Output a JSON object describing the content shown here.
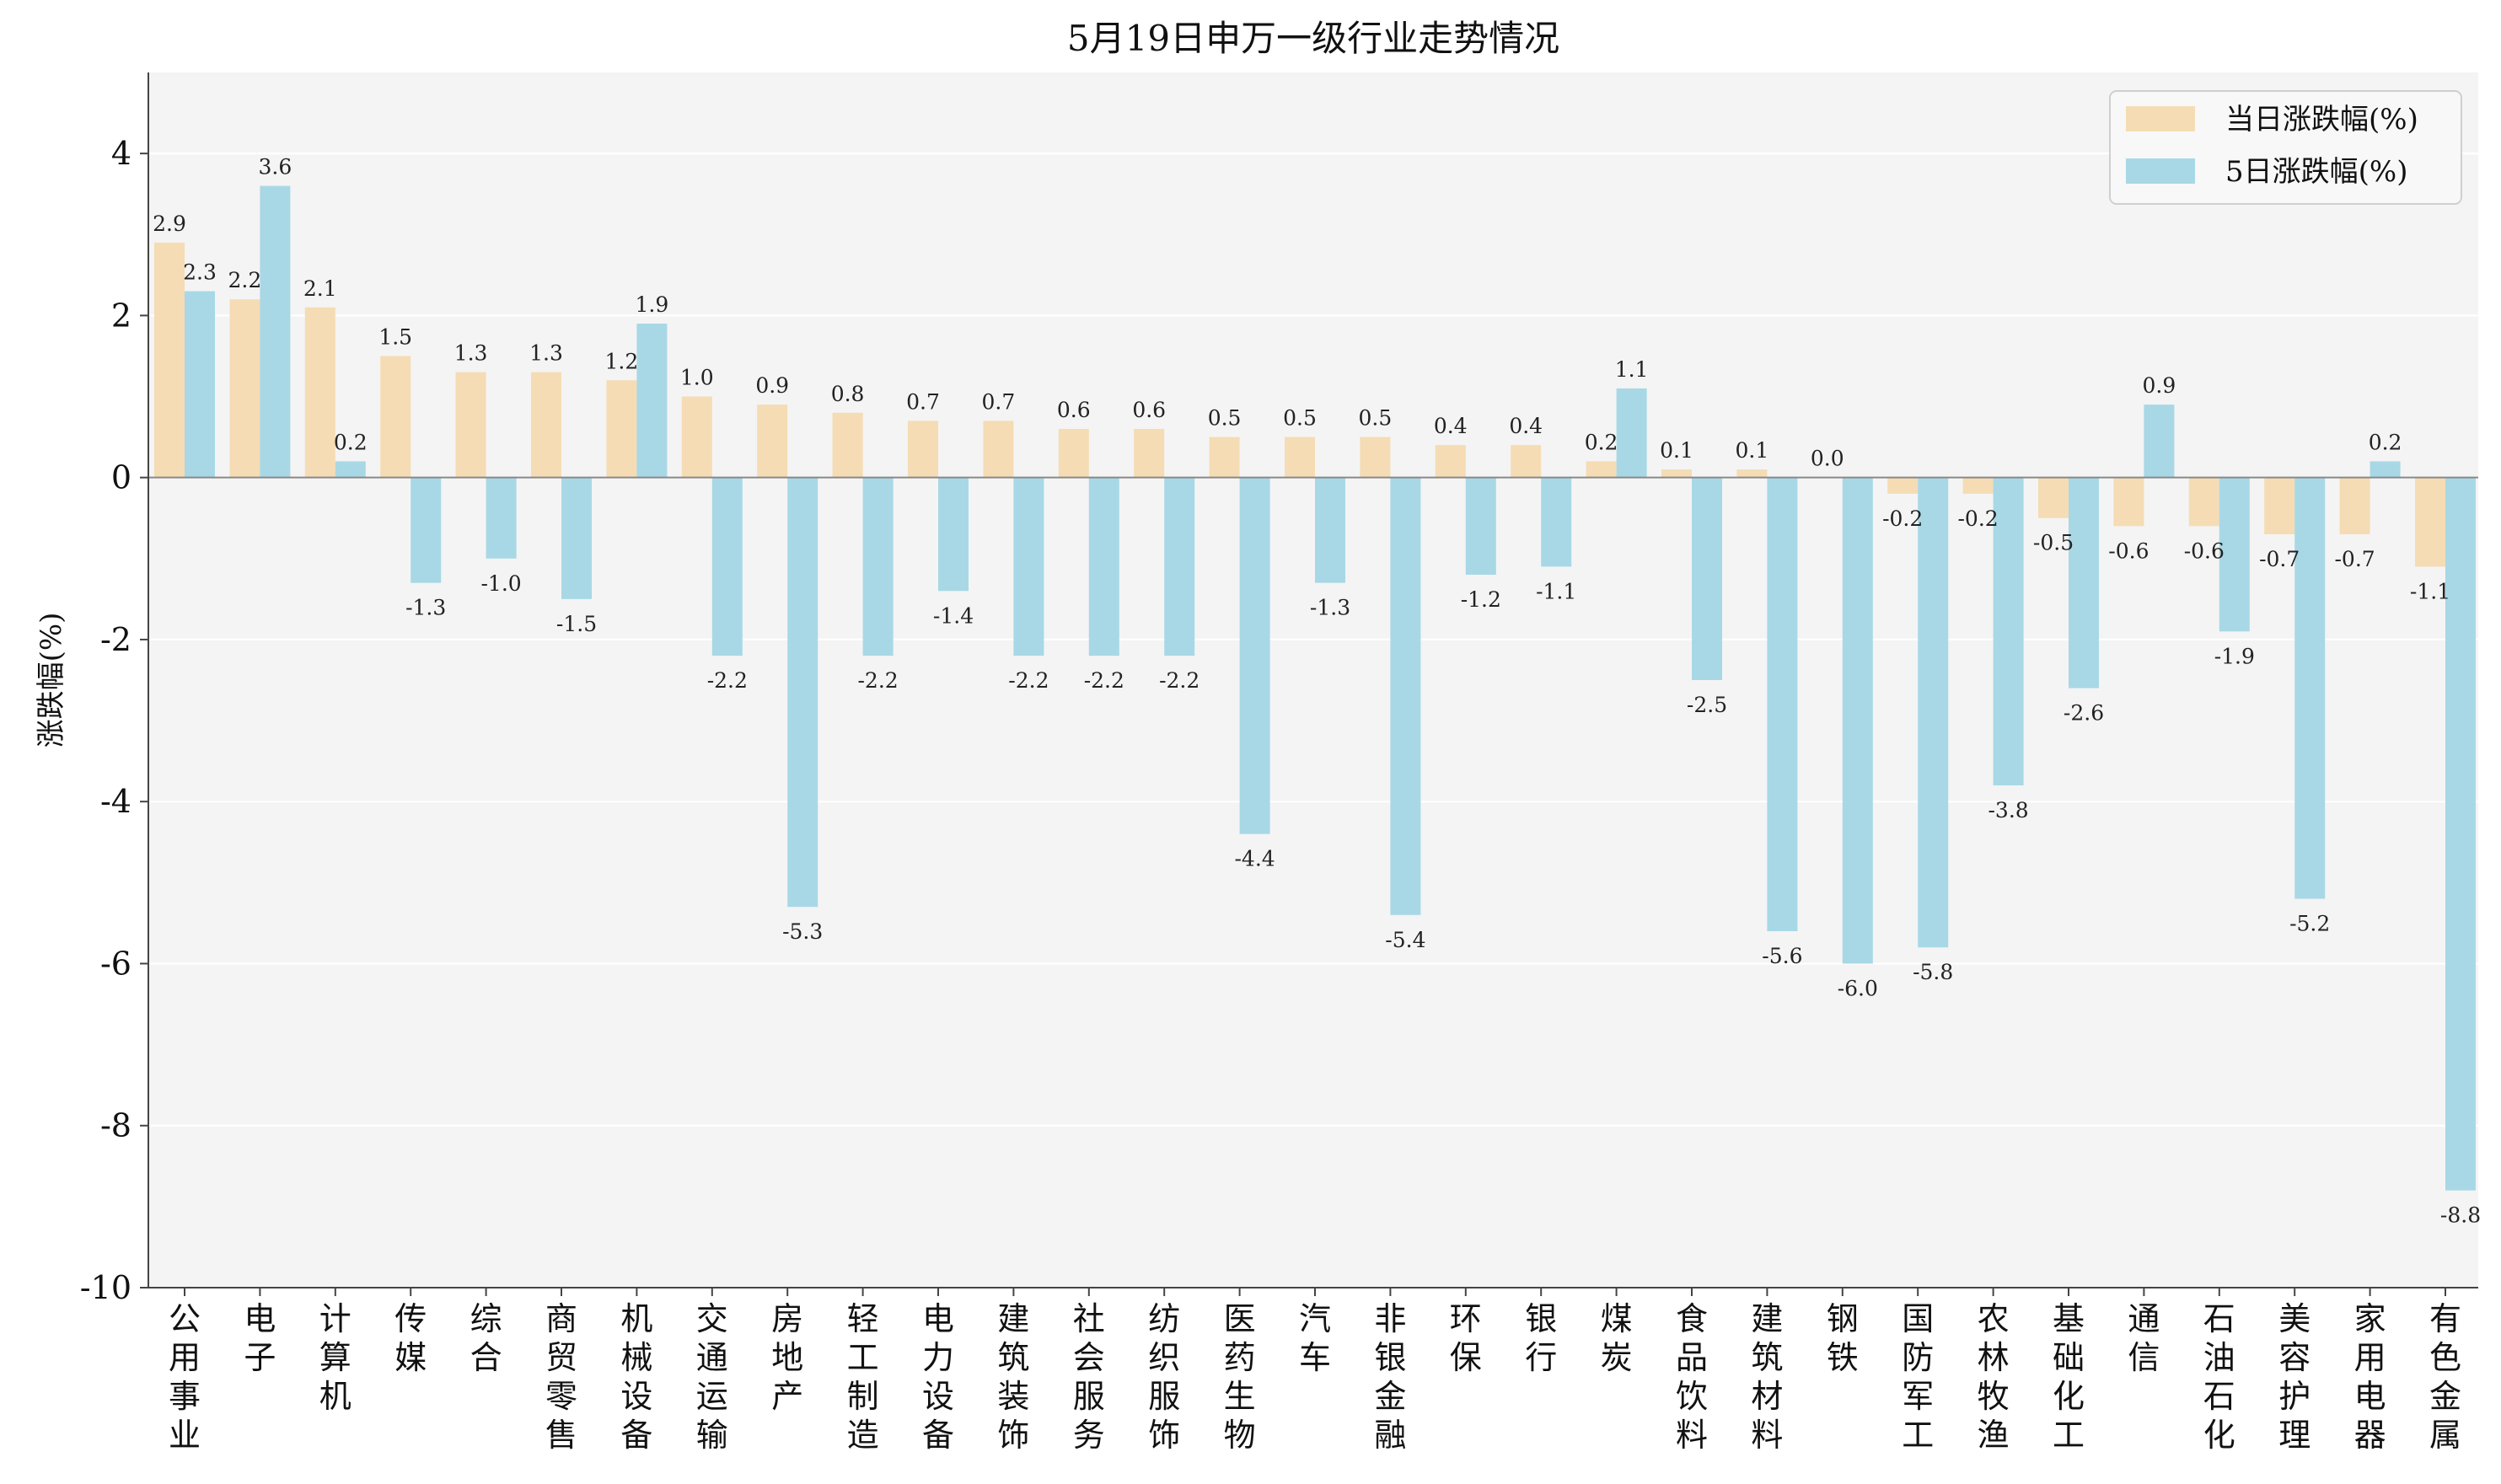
{
  "chart_data": {
    "type": "bar",
    "title": "5月19日申万一级行业走势情况",
    "xlabel": "",
    "ylabel": "涨跌幅(%)",
    "ylim": [
      -10,
      5
    ],
    "yticks": [
      4,
      2,
      0,
      -2,
      -4,
      -6,
      -8,
      -10
    ],
    "grid": true,
    "legend_position": "top-right",
    "categories": [
      "公用事业",
      "电子",
      "计算机",
      "传媒",
      "综合",
      "商贸零售",
      "机械设备",
      "交通运输",
      "房地产",
      "轻工制造",
      "电力设备",
      "建筑装饰",
      "社会服务",
      "纺织服饰",
      "医药生物",
      "汽车",
      "非银金融",
      "环保",
      "银行",
      "煤炭",
      "食品饮料",
      "建筑材料",
      "钢铁",
      "国防军工",
      "农林牧渔",
      "基础化工",
      "通信",
      "石油石化",
      "美容护理",
      "家用电器",
      "有色金属"
    ],
    "series": [
      {
        "name": "当日涨跌幅(%)",
        "color": "#f5dcb4",
        "values": [
          2.9,
          2.2,
          2.1,
          1.5,
          1.3,
          1.3,
          1.2,
          1.0,
          0.9,
          0.8,
          0.7,
          0.7,
          0.6,
          0.6,
          0.5,
          0.5,
          0.5,
          0.4,
          0.4,
          0.2,
          0.1,
          0.1,
          0.0,
          -0.2,
          -0.2,
          -0.5,
          -0.6,
          -0.6,
          -0.7,
          -0.7,
          -1.1
        ],
        "labels": [
          "2.9",
          "2.2",
          "2.1",
          "1.5",
          "1.3",
          "1.3",
          "1.2",
          "1.0",
          "0.9",
          "0.8",
          "0.7",
          "0.7",
          "0.6",
          "0.6",
          "0.5",
          "0.5",
          "0.5",
          "0.4",
          "0.4",
          "0.2",
          "0.1",
          "0.1",
          "0.0",
          "-0.2",
          "-0.2",
          "-0.5",
          "-0.6",
          "-0.6",
          "-0.7",
          "-0.7",
          "-1.1"
        ]
      },
      {
        "name": "5日涨跌幅(%)",
        "color": "#a8d8e6",
        "values": [
          2.3,
          3.6,
          0.2,
          -1.3,
          -1.0,
          -1.5,
          1.9,
          -2.2,
          -5.3,
          -2.2,
          -1.4,
          -2.2,
          -2.2,
          -2.2,
          -4.4,
          -1.3,
          -5.4,
          -1.2,
          -1.1,
          1.1,
          -2.5,
          -5.6,
          -6.0,
          -5.8,
          -3.8,
          -2.6,
          0.9,
          -1.9,
          -5.2,
          0.2,
          -8.8
        ],
        "labels": [
          "2.3",
          "3.6",
          "0.2",
          "-1.3",
          "-1.0",
          "-1.5",
          "1.9",
          "-2.2",
          "-5.3",
          "-2.2",
          "-1.4",
          "-2.2",
          "-2.2",
          "-2.2",
          "-4.4",
          "-1.3",
          "-5.4",
          "-1.2",
          "-1.1",
          "1.1",
          "-2.5",
          "-5.6",
          "-6.0",
          "-5.8",
          "-3.8",
          "-2.6",
          "0.9",
          "-1.9",
          "-5.2",
          "0.2",
          "-8.8"
        ]
      }
    ]
  }
}
